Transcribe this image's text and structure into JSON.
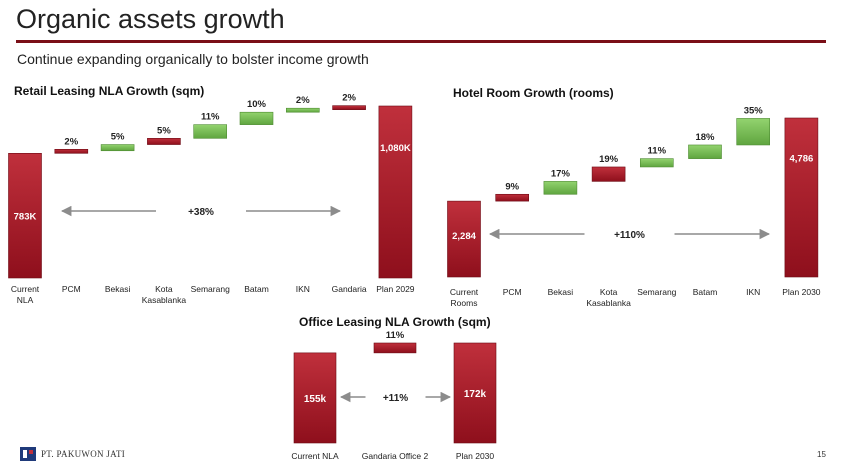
{
  "page": {
    "title": "Organic assets growth",
    "subtitle": "Continue expanding organically to bolster income growth",
    "footer_company": "PT. PAKUWON JATI",
    "page_number": "15"
  },
  "colors": {
    "accent_dark_red": "#7a0f17",
    "bar_red": "#9b1422",
    "bar_green": "#6fb64f",
    "arrow_gray": "#8c8c8c"
  },
  "chart_data": [
    {
      "type": "waterfall",
      "title": "Retail Leasing NLA Growth (sqm)",
      "categories": [
        "Current NLA",
        "PCM",
        "Bekasi",
        "Kota Kasablanka",
        "Semarang",
        "Batam",
        "IKN",
        "Gandaria",
        "Plan 2029"
      ],
      "steps": [
        {
          "label": "Current NLA",
          "kind": "total",
          "value_label": "783K",
          "value": 783
        },
        {
          "label": "PCM",
          "kind": "increase",
          "color": "red",
          "pct_label": "2%",
          "value": 16
        },
        {
          "label": "Bekasi",
          "kind": "increase",
          "color": "green",
          "pct_label": "5%",
          "value": 39
        },
        {
          "label": "Kota Kasablanka",
          "kind": "increase",
          "color": "red",
          "pct_label": "5%",
          "value": 39
        },
        {
          "label": "Semarang",
          "kind": "increase",
          "color": "green",
          "pct_label": "11%",
          "value": 86
        },
        {
          "label": "Batam",
          "kind": "increase",
          "color": "green",
          "pct_label": "10%",
          "value": 78
        },
        {
          "label": "IKN",
          "kind": "increase",
          "color": "green",
          "pct_label": "2%",
          "value": 16
        },
        {
          "label": "Gandaria",
          "kind": "increase",
          "color": "red",
          "pct_label": "2%",
          "value": 16
        },
        {
          "label": "Plan 2029",
          "kind": "total",
          "value_label": "1,080K",
          "value": 1080
        }
      ],
      "growth_label": "+38%"
    },
    {
      "type": "waterfall",
      "title": "Hotel Room Growth (rooms)",
      "categories": [
        "Current Rooms",
        "PCM",
        "Bekasi",
        "Kota Kasablanka",
        "Semarang",
        "Batam",
        "IKN",
        "Plan 2030"
      ],
      "steps": [
        {
          "label": "Current Rooms",
          "kind": "total",
          "value_label": "2,284",
          "value": 2284
        },
        {
          "label": "PCM",
          "kind": "increase",
          "color": "red",
          "pct_label": "9%",
          "value": 206
        },
        {
          "label": "Bekasi",
          "kind": "increase",
          "color": "green",
          "pct_label": "17%",
          "value": 388
        },
        {
          "label": "Kota Kasablanka",
          "kind": "increase",
          "color": "red",
          "pct_label": "19%",
          "value": 434
        },
        {
          "label": "Semarang",
          "kind": "increase",
          "color": "green",
          "pct_label": "11%",
          "value": 251
        },
        {
          "label": "Batam",
          "kind": "increase",
          "color": "green",
          "pct_label": "18%",
          "value": 411
        },
        {
          "label": "IKN",
          "kind": "increase",
          "color": "green",
          "pct_label": "35%",
          "value": 799
        },
        {
          "label": "Plan 2030",
          "kind": "total",
          "value_label": "4,786",
          "value": 4786
        }
      ],
      "growth_label": "+110%"
    },
    {
      "type": "waterfall",
      "title": "Office Leasing NLA Growth (sqm)",
      "categories": [
        "Current NLA",
        "Gandaria Office 2",
        "Plan 2030"
      ],
      "steps": [
        {
          "label": "Current NLA",
          "kind": "total",
          "value_label": "155k",
          "value": 155
        },
        {
          "label": "Gandaria Office 2",
          "kind": "increase",
          "color": "red",
          "pct_label": "11%",
          "value": 17
        },
        {
          "label": "Plan 2030",
          "kind": "total",
          "value_label": "172k",
          "value": 172
        }
      ],
      "growth_label": "+11%"
    }
  ]
}
